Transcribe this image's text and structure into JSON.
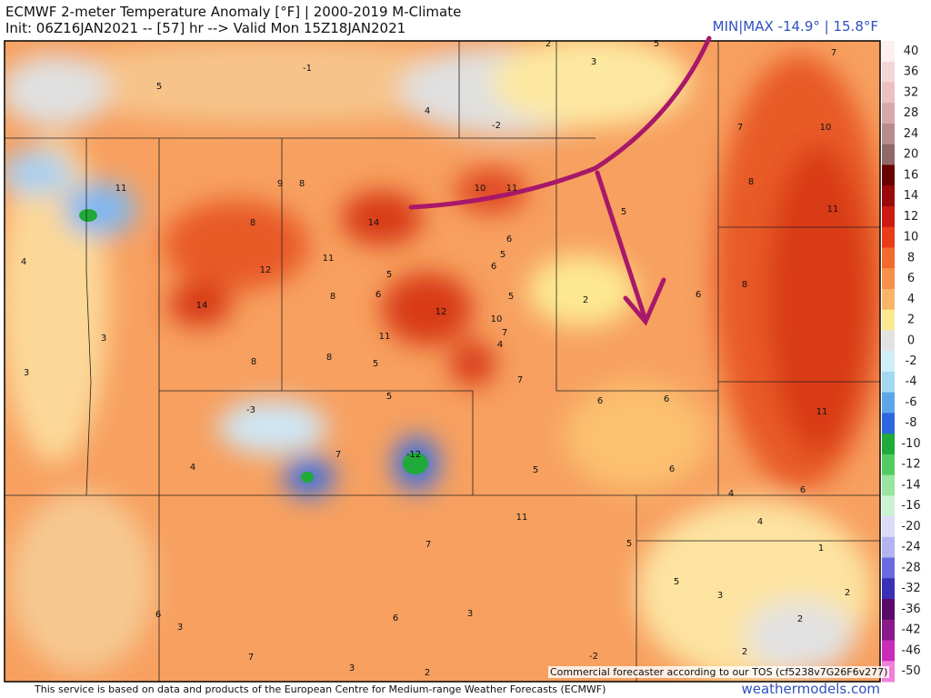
{
  "header": {
    "title": "ECMWF 2-meter Temperature Anomaly [°F] | 2000-2019 M-Climate",
    "subtitle": "Init: 06Z16JAN2021 -- [57] hr --> Valid Mon 15Z18JAN2021",
    "minmax": "MIN|MAX -14.9° | 15.8°F"
  },
  "colorbar": {
    "labels": [
      40,
      36,
      32,
      28,
      24,
      20,
      16,
      14,
      12,
      10,
      8,
      6,
      4,
      2,
      0,
      -2,
      -4,
      -6,
      -8,
      -10,
      -12,
      -14,
      -16,
      -20,
      -24,
      -28,
      -32,
      -36,
      -42,
      -46,
      -50
    ],
    "colors": [
      "#fdf0f0",
      "#f5d6d6",
      "#ecc0c0",
      "#d8a8a8",
      "#b88c8c",
      "#906868",
      "#6a0000",
      "#9a0a0a",
      "#cc1a10",
      "#e83c18",
      "#f26a2c",
      "#f7904a",
      "#f9b46a",
      "#fde892",
      "#e2e2e2",
      "#cfeff8",
      "#a4d8f2",
      "#5ea6ea",
      "#2f66e0",
      "#1faa3a",
      "#52cc62",
      "#98e4a0",
      "#ccf2d2",
      "#dcdcf8",
      "#b4b4f0",
      "#6a6ae0",
      "#3a30b8",
      "#5a0a6a",
      "#8a1a8a",
      "#c82cb8",
      "#f080d8",
      "#f8b8ec"
    ]
  },
  "map_labels": [
    -1,
    5,
    4,
    -2,
    2,
    5,
    3,
    7,
    7,
    10,
    11,
    9,
    8,
    10,
    11,
    8,
    11,
    14,
    8,
    5,
    4,
    12,
    11,
    6,
    5,
    6,
    5,
    8,
    6,
    5,
    2,
    6,
    8,
    14,
    12,
    10,
    7,
    4,
    3,
    11,
    3,
    8,
    8,
    5,
    7,
    5,
    6,
    6,
    -3,
    11,
    7,
    -12,
    4,
    5,
    6,
    4,
    6,
    11,
    4,
    7,
    5,
    1,
    5,
    3,
    2,
    6,
    3,
    6,
    3,
    2,
    7,
    3,
    -2,
    2,
    2
  ],
  "footer": {
    "disclaimer": "This service is based on data and products of the European Centre for Medium-range Weather Forecasts (ECMWF)",
    "tos": "Commercial forecaster according to our TOS (cf5238v7G26F6v277)",
    "site": "weathermodels.com"
  }
}
